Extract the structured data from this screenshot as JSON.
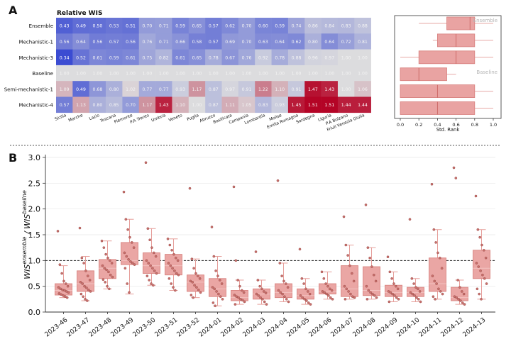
{
  "panels": {
    "a": "A",
    "b": "B"
  },
  "chart_data": [
    {
      "type": "heatmap",
      "title": "Relative WIS",
      "rows": [
        "Ensemble",
        "Mechanistic-1",
        "Mechanistic-3",
        "Baseline",
        "Semi-mechanistic-1",
        "Mechanistic-4"
      ],
      "columns": [
        "Sicilia",
        "Marche",
        "Lazio",
        "Toscana",
        "Piemonte",
        "P.A Trento",
        "Umbria",
        "Veneto",
        "Puglia",
        "Abruzzo",
        "Basilicata",
        "Campania",
        "Lombardia",
        "Molise",
        "Emilia Romagna",
        "Sardegna",
        "Liguria",
        "P.A Bolzano",
        "Friuli Venezia Giulia"
      ],
      "values": [
        [
          0.43,
          0.49,
          0.5,
          0.53,
          0.51,
          0.7,
          0.71,
          0.59,
          0.65,
          0.57,
          0.62,
          0.7,
          0.6,
          0.59,
          0.74,
          0.86,
          0.84,
          0.83,
          0.88
        ],
        [
          0.56,
          0.64,
          0.56,
          0.57,
          0.56,
          0.76,
          0.71,
          0.66,
          0.58,
          0.57,
          0.69,
          0.7,
          0.63,
          0.64,
          0.62,
          0.8,
          0.64,
          0.72,
          0.81
        ],
        [
          0.34,
          0.52,
          0.61,
          0.59,
          0.61,
          0.75,
          0.82,
          0.61,
          0.65,
          0.78,
          0.67,
          0.76,
          0.92,
          0.78,
          0.88,
          0.96,
          0.97,
          1.0,
          1.0
        ],
        [
          1.0,
          1.0,
          1.0,
          1.0,
          1.0,
          1.0,
          1.0,
          1.0,
          1.0,
          1.0,
          1.0,
          1.0,
          1.0,
          1.0,
          1.0,
          1.0,
          1.0,
          1.0,
          1.0
        ],
        [
          1.09,
          0.49,
          0.68,
          0.8,
          1.02,
          0.77,
          0.77,
          0.93,
          1.17,
          0.87,
          0.97,
          0.91,
          1.22,
          1.1,
          0.91,
          1.47,
          1.43,
          1.0,
          1.06
        ],
        [
          0.57,
          1.13,
          0.8,
          0.85,
          0.7,
          1.17,
          1.43,
          1.1,
          1.0,
          0.87,
          1.11,
          1.05,
          0.83,
          0.93,
          1.45,
          1.51,
          1.51,
          1.44,
          1.44
        ]
      ]
    },
    {
      "type": "box",
      "xlabel": "Std. Rank",
      "xlim": [
        0,
        1
      ],
      "xticks": [
        "0.0",
        "0.2",
        "0.4",
        "0.6",
        "0.8",
        "1.0"
      ],
      "annotations": [
        "Ensemble",
        "Baseline"
      ],
      "rows": [
        {
          "model": "Ensemble",
          "whisker_low": 0.2,
          "q1": 0.5,
          "median": 0.75,
          "q3": 0.8,
          "whisker_high": 1.0
        },
        {
          "model": "Mechanistic-1",
          "whisker_low": 0.35,
          "q1": 0.4,
          "median": 0.6,
          "q3": 0.8,
          "whisker_high": 1.0
        },
        {
          "model": "Mechanistic-3",
          "whisker_low": 0.0,
          "q1": 0.2,
          "median": 0.6,
          "q3": 0.8,
          "whisker_high": 1.0
        },
        {
          "model": "Baseline",
          "whisker_low": 0.0,
          "q1": 0.0,
          "median": 0.2,
          "q3": 0.5,
          "whisker_high": 0.6
        },
        {
          "model": "Semi-mechanistic-1",
          "whisker_low": 0.0,
          "q1": 0.0,
          "median": 0.4,
          "q3": 0.8,
          "whisker_high": 1.0
        },
        {
          "model": "Mechanistic-4",
          "whisker_low": 0.0,
          "q1": 0.0,
          "median": 0.4,
          "q3": 0.8,
          "whisker_high": 1.0
        }
      ]
    },
    {
      "type": "box",
      "ylabel": "WIS^ensemble / WIS^baseline",
      "ylim": [
        0,
        3.0
      ],
      "yticks": [
        "0.0",
        "0.5",
        "1.0",
        "1.5",
        "2.0",
        "2.5",
        "3.0"
      ],
      "reference_line": 1.0,
      "categories": [
        "2023-46",
        "2023-47",
        "2023-48",
        "2023-49",
        "2023-50",
        "2023-51",
        "2023-52",
        "2024-01",
        "2024-02",
        "2024-03",
        "2024-04",
        "2024-05",
        "2024-06",
        "2024-07",
        "2024-08",
        "2024-09",
        "2024-10",
        "2024-11",
        "2024-12",
        "2024-13"
      ],
      "boxes": [
        {
          "whisker_low": 0.28,
          "q1": 0.33,
          "median": 0.42,
          "q3": 0.55,
          "whisker_high": 0.9,
          "points": [
            1.57,
            0.92,
            0.75,
            0.6,
            0.55,
            0.5,
            0.48,
            0.45,
            0.43,
            0.42,
            0.4,
            0.38,
            0.36,
            0.34,
            0.32,
            0.3,
            0.28
          ]
        },
        {
          "whisker_low": 0.22,
          "q1": 0.4,
          "median": 0.55,
          "q3": 0.8,
          "whisker_high": 1.08,
          "points": [
            1.63,
            1.05,
            0.95,
            0.8,
            0.7,
            0.62,
            0.58,
            0.55,
            0.5,
            0.47,
            0.43,
            0.4,
            0.35,
            0.3,
            0.25,
            0.22
          ]
        },
        {
          "whisker_low": 0.45,
          "q1": 0.65,
          "median": 0.85,
          "q3": 1.02,
          "whisker_high": 1.38,
          "points": [
            1.38,
            1.25,
            1.12,
            1.05,
            1.0,
            0.95,
            0.9,
            0.85,
            0.82,
            0.78,
            0.72,
            0.68,
            0.63,
            0.58,
            0.5,
            0.45
          ]
        },
        {
          "whisker_low": 0.35,
          "q1": 0.92,
          "median": 1.0,
          "q3": 1.35,
          "whisker_high": 1.8,
          "points": [
            2.33,
            1.8,
            1.6,
            1.45,
            1.35,
            1.25,
            1.15,
            1.08,
            1.02,
            0.98,
            0.95,
            0.92,
            0.85,
            0.55,
            0.38
          ]
        },
        {
          "whisker_low": 0.52,
          "q1": 0.75,
          "median": 0.9,
          "q3": 1.15,
          "whisker_high": 1.62,
          "points": [
            2.9,
            1.62,
            1.4,
            1.25,
            1.15,
            1.08,
            1.0,
            0.95,
            0.9,
            0.85,
            0.8,
            0.75,
            0.7,
            0.62,
            0.55,
            0.52
          ]
        },
        {
          "whisker_low": 0.42,
          "q1": 0.72,
          "median": 0.9,
          "q3": 1.12,
          "whisker_high": 1.42,
          "points": [
            1.42,
            1.3,
            1.2,
            1.12,
            1.05,
            1.0,
            0.95,
            0.9,
            0.85,
            0.8,
            0.75,
            0.72,
            0.65,
            0.55,
            0.48,
            0.42
          ]
        },
        {
          "whisker_low": 0.28,
          "q1": 0.4,
          "median": 0.58,
          "q3": 0.72,
          "whisker_high": 1.03,
          "points": [
            2.4,
            1.03,
            0.85,
            0.75,
            0.7,
            0.65,
            0.6,
            0.58,
            0.52,
            0.48,
            0.43,
            0.38,
            0.33,
            0.28
          ]
        },
        {
          "whisker_low": 0.12,
          "q1": 0.3,
          "median": 0.45,
          "q3": 0.65,
          "whisker_high": 1.08,
          "points": [
            1.65,
            1.08,
            0.8,
            0.7,
            0.62,
            0.55,
            0.48,
            0.45,
            0.4,
            0.35,
            0.3,
            0.25,
            0.18,
            0.12
          ]
        },
        {
          "whisker_low": 0.15,
          "q1": 0.22,
          "median": 0.28,
          "q3": 0.42,
          "whisker_high": 0.62,
          "points": [
            2.43,
            1.0,
            0.62,
            0.5,
            0.42,
            0.38,
            0.33,
            0.3,
            0.28,
            0.25,
            0.23,
            0.2,
            0.15
          ]
        },
        {
          "whisker_low": 0.15,
          "q1": 0.25,
          "median": 0.35,
          "q3": 0.45,
          "whisker_high": 0.62,
          "points": [
            1.17,
            0.62,
            0.5,
            0.45,
            0.4,
            0.37,
            0.35,
            0.32,
            0.28,
            0.25,
            0.2,
            0.15
          ]
        },
        {
          "whisker_low": 0.2,
          "q1": 0.28,
          "median": 0.38,
          "q3": 0.55,
          "whisker_high": 0.95,
          "points": [
            2.55,
            0.95,
            0.7,
            0.6,
            0.55,
            0.48,
            0.42,
            0.38,
            0.35,
            0.3,
            0.25,
            0.2
          ]
        },
        {
          "whisker_low": 0.15,
          "q1": 0.25,
          "median": 0.32,
          "q3": 0.45,
          "whisker_high": 0.65,
          "points": [
            1.22,
            0.65,
            0.55,
            0.45,
            0.4,
            0.35,
            0.32,
            0.28,
            0.25,
            0.22,
            0.18,
            0.15
          ]
        },
        {
          "whisker_low": 0.25,
          "q1": 0.35,
          "median": 0.4,
          "q3": 0.55,
          "whisker_high": 0.78,
          "points": [
            0.78,
            0.65,
            0.55,
            0.5,
            0.45,
            0.42,
            0.4,
            0.38,
            0.35,
            0.32,
            0.28,
            0.25
          ]
        },
        {
          "whisker_low": 0.25,
          "q1": 0.3,
          "median": 0.45,
          "q3": 0.9,
          "whisker_high": 1.3,
          "points": [
            1.85,
            1.3,
            1.1,
            0.9,
            0.75,
            0.6,
            0.5,
            0.45,
            0.4,
            0.35,
            0.3,
            0.28,
            0.25
          ]
        },
        {
          "whisker_low": 0.25,
          "q1": 0.32,
          "median": 0.42,
          "q3": 0.88,
          "whisker_high": 1.25,
          "points": [
            2.08,
            1.25,
            1.05,
            0.88,
            0.72,
            0.6,
            0.5,
            0.42,
            0.38,
            0.35,
            0.32,
            0.28,
            0.25
          ]
        },
        {
          "whisker_low": 0.2,
          "q1": 0.3,
          "median": 0.38,
          "q3": 0.52,
          "whisker_high": 0.78,
          "points": [
            1.07,
            0.78,
            0.65,
            0.55,
            0.5,
            0.45,
            0.4,
            0.38,
            0.35,
            0.32,
            0.28,
            0.25,
            0.2
          ]
        },
        {
          "whisker_low": 0.2,
          "q1": 0.3,
          "median": 0.38,
          "q3": 0.48,
          "whisker_high": 0.65,
          "points": [
            1.8,
            0.65,
            0.55,
            0.48,
            0.45,
            0.4,
            0.38,
            0.35,
            0.32,
            0.28,
            0.25,
            0.2
          ]
        },
        {
          "whisker_low": 0.25,
          "q1": 0.4,
          "median": 0.55,
          "q3": 1.05,
          "whisker_high": 1.6,
          "points": [
            2.48,
            1.6,
            1.35,
            1.15,
            1.05,
            0.85,
            0.7,
            0.6,
            0.55,
            0.45,
            0.4,
            0.35,
            0.3,
            0.25
          ]
        },
        {
          "whisker_low": 0.15,
          "q1": 0.22,
          "median": 0.28,
          "q3": 0.48,
          "whisker_high": 0.62,
          "points": [
            2.8,
            2.6,
            0.62,
            0.48,
            0.4,
            0.35,
            0.3,
            0.28,
            0.25,
            0.22,
            0.18,
            0.15
          ]
        },
        {
          "whisker_low": 0.25,
          "q1": 0.65,
          "median": 0.85,
          "q3": 1.2,
          "whisker_high": 1.6,
          "points": [
            2.25,
            1.6,
            1.45,
            1.3,
            1.2,
            1.05,
            0.95,
            0.88,
            0.8,
            0.72,
            0.65,
            0.55,
            0.45,
            0.35,
            0.25
          ]
        }
      ]
    }
  ]
}
